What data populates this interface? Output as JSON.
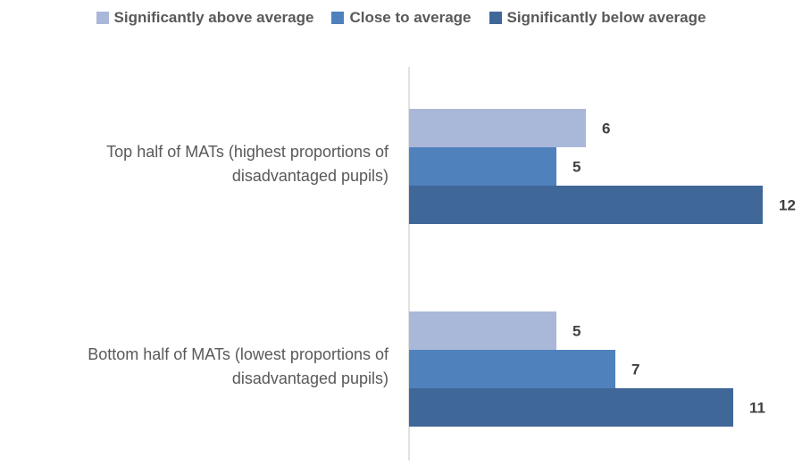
{
  "chart_data": {
    "type": "bar",
    "orientation": "horizontal",
    "categories": [
      [
        "Top half of MATs (highest proportions of",
        "disadvantaged pupils)"
      ],
      [
        "Bottom half of MATs (lowest proportions of",
        "disadvantaged pupils)"
      ]
    ],
    "series": [
      {
        "name": "Significantly above average",
        "values": [
          6,
          5
        ],
        "color": "#a9b8d8"
      },
      {
        "name": "Close to average",
        "values": [
          5,
          7
        ],
        "color": "#4f81bd"
      },
      {
        "name": "Significantly below average",
        "values": [
          12,
          11
        ],
        "color": "#3f6898"
      }
    ],
    "xlim": [
      0,
      12.5
    ],
    "legend_position": "top",
    "grid": false
  }
}
